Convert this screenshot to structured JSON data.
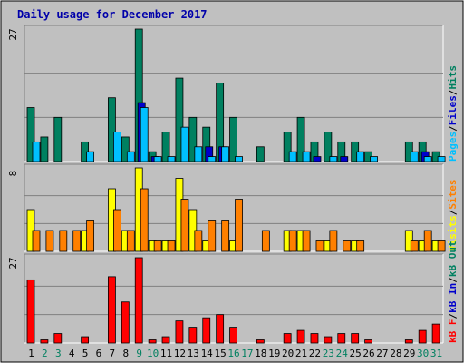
{
  "chart_data": {
    "type": "bar",
    "title": "Daily usage for December 2017",
    "categories": [
      "1",
      "2",
      "3",
      "4",
      "5",
      "6",
      "7",
      "8",
      "9",
      "10",
      "11",
      "12",
      "13",
      "14",
      "15",
      "16",
      "17",
      "18",
      "19",
      "20",
      "21",
      "22",
      "23",
      "24",
      "25",
      "26",
      "27",
      "28",
      "29",
      "30",
      "31"
    ],
    "weekend_days": [
      2,
      3,
      9,
      10,
      16,
      17,
      23,
      24,
      30,
      31
    ],
    "panels": [
      {
        "ymax_label": "27",
        "ylim": [
          0,
          27
        ],
        "legend": [
          "Pages",
          "/",
          "Files",
          "/",
          "Hits"
        ],
        "legend_colors": [
          "#00c0ff",
          "#000000",
          "#0000cc",
          "#000000",
          "#008060"
        ],
        "series": [
          {
            "name": "Hits",
            "color": "#008060",
            "values": [
              11,
              5,
              9,
              0,
              4,
              0,
              13,
              5,
              27,
              2,
              6,
              17,
              9,
              7,
              16,
              9,
              0,
              3,
              0,
              6,
              9,
              4,
              6,
              4,
              4,
              2,
              0,
              0,
              4,
              4,
              2
            ]
          },
          {
            "name": "Files",
            "color": "#0000cc",
            "values": [
              0,
              0,
              0,
              0,
              0,
              0,
              0,
              0,
              12,
              1,
              0,
              0,
              0,
              3,
              3,
              0,
              0,
              0,
              0,
              0,
              0,
              1,
              0,
              1,
              0,
              0,
              0,
              0,
              0,
              2,
              0
            ]
          },
          {
            "name": "Pages",
            "color": "#00c0ff",
            "values": [
              4,
              0,
              0,
              0,
              2,
              0,
              6,
              2,
              11,
              1,
              1,
              7,
              3,
              1,
              3,
              1,
              0,
              0,
              0,
              2,
              2,
              0,
              1,
              0,
              2,
              1,
              0,
              0,
              2,
              1,
              1
            ]
          }
        ]
      },
      {
        "ymax_label": "8",
        "ylim": [
          0,
          8
        ],
        "legend": [
          "Visits",
          "/",
          "Sites"
        ],
        "legend_colors": [
          "#ffff00",
          "#000000",
          "#ff8000"
        ],
        "series": [
          {
            "name": "Visits",
            "color": "#ffff00",
            "values": [
              4,
              0,
              0,
              0,
              2,
              0,
              6,
              2,
              8,
              1,
              1,
              7,
              4,
              1,
              0,
              1,
              0,
              0,
              0,
              2,
              2,
              0,
              1,
              0,
              1,
              0,
              0,
              0,
              2,
              1,
              1
            ]
          },
          {
            "name": "Sites",
            "color": "#ff8000",
            "values": [
              2,
              2,
              2,
              2,
              3,
              0,
              4,
              2,
              6,
              1,
              1,
              5,
              2,
              3,
              3,
              5,
              0,
              2,
              0,
              2,
              2,
              1,
              2,
              1,
              1,
              0,
              0,
              0,
              1,
              2,
              1
            ]
          }
        ]
      },
      {
        "ymax_label": "27",
        "ylim": [
          0,
          27
        ],
        "legend": [
          "kB F",
          "/",
          "kB In",
          "/",
          "kB Out"
        ],
        "legend_colors": [
          "#ff0000",
          "#000000",
          "#0000cc",
          "#000000",
          "#008060"
        ],
        "series": [
          {
            "name": "kB F",
            "color": "#ff0000",
            "values": [
              20,
              1,
              3,
              0,
              2,
              0,
              21,
              13,
              27,
              1,
              2,
              7,
              5,
              8,
              9,
              5,
              0,
              1,
              0,
              3,
              4,
              3,
              2,
              3,
              3,
              1,
              0,
              0,
              1,
              4,
              6
            ]
          }
        ]
      }
    ]
  }
}
